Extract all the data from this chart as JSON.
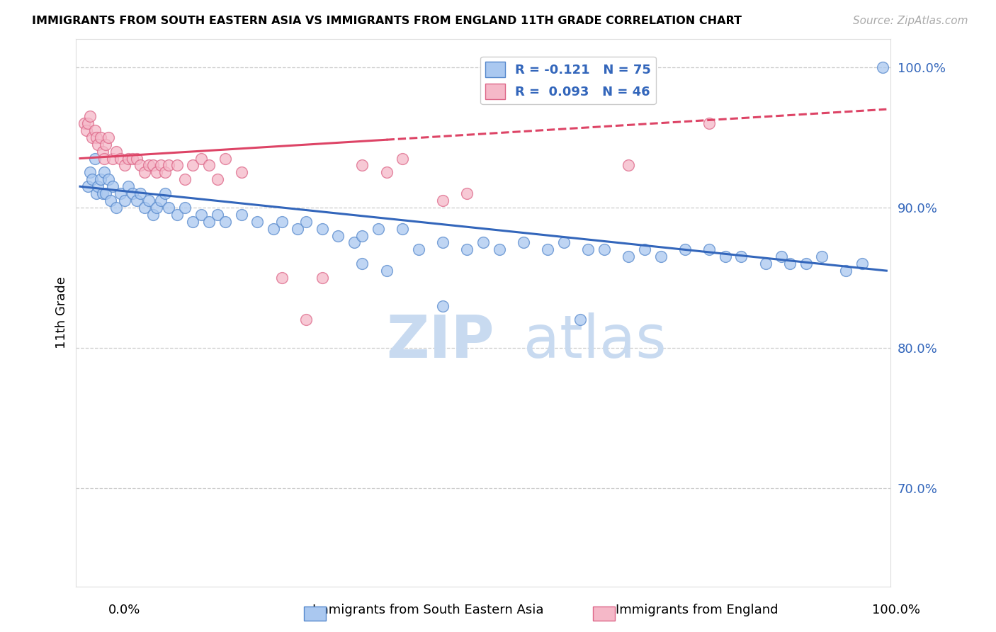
{
  "title": "IMMIGRANTS FROM SOUTH EASTERN ASIA VS IMMIGRANTS FROM ENGLAND 11TH GRADE CORRELATION CHART",
  "source": "Source: ZipAtlas.com",
  "ylabel": "11th Grade",
  "blue_R": -0.121,
  "blue_N": 75,
  "pink_R": 0.093,
  "pink_N": 46,
  "blue_color": "#aac8f0",
  "pink_color": "#f5b8c8",
  "blue_edge_color": "#5588cc",
  "pink_edge_color": "#dd6688",
  "blue_line_color": "#3366bb",
  "pink_line_color": "#dd4466",
  "blue_line_start_y": 91.5,
  "blue_line_end_y": 85.5,
  "pink_line_start_y": 93.5,
  "pink_line_end_y": 97.0,
  "pink_dash_start_x": 38.0,
  "blue_scatter_x": [
    1.0,
    1.2,
    1.5,
    1.8,
    2.0,
    2.2,
    2.5,
    2.8,
    3.0,
    3.2,
    3.5,
    3.8,
    4.0,
    4.5,
    5.0,
    5.5,
    6.0,
    6.5,
    7.0,
    7.5,
    8.0,
    8.5,
    9.0,
    9.5,
    10.0,
    10.5,
    11.0,
    12.0,
    13.0,
    14.0,
    15.0,
    16.0,
    17.0,
    18.0,
    20.0,
    22.0,
    24.0,
    25.0,
    27.0,
    28.0,
    30.0,
    32.0,
    34.0,
    35.0,
    37.0,
    40.0,
    42.0,
    45.0,
    48.0,
    50.0,
    52.0,
    55.0,
    58.0,
    60.0,
    63.0,
    65.0,
    68.0,
    70.0,
    72.0,
    75.0,
    78.0,
    80.0,
    82.0,
    85.0,
    87.0,
    88.0,
    90.0,
    92.0,
    95.0,
    97.0,
    99.5,
    35.0,
    38.0,
    45.0,
    62.0
  ],
  "blue_scatter_y": [
    91.5,
    92.5,
    92.0,
    93.5,
    91.0,
    91.5,
    92.0,
    91.0,
    92.5,
    91.0,
    92.0,
    90.5,
    91.5,
    90.0,
    91.0,
    90.5,
    91.5,
    91.0,
    90.5,
    91.0,
    90.0,
    90.5,
    89.5,
    90.0,
    90.5,
    91.0,
    90.0,
    89.5,
    90.0,
    89.0,
    89.5,
    89.0,
    89.5,
    89.0,
    89.5,
    89.0,
    88.5,
    89.0,
    88.5,
    89.0,
    88.5,
    88.0,
    87.5,
    88.0,
    88.5,
    88.5,
    87.0,
    87.5,
    87.0,
    87.5,
    87.0,
    87.5,
    87.0,
    87.5,
    87.0,
    87.0,
    86.5,
    87.0,
    86.5,
    87.0,
    87.0,
    86.5,
    86.5,
    86.0,
    86.5,
    86.0,
    86.0,
    86.5,
    85.5,
    86.0,
    100.0,
    86.0,
    85.5,
    83.0,
    82.0
  ],
  "pink_scatter_x": [
    0.5,
    0.8,
    1.0,
    1.2,
    1.5,
    1.8,
    2.0,
    2.2,
    2.5,
    2.8,
    3.0,
    3.2,
    3.5,
    4.0,
    4.5,
    5.0,
    5.5,
    6.0,
    6.5,
    7.0,
    7.5,
    8.0,
    8.5,
    9.0,
    9.5,
    10.0,
    10.5,
    11.0,
    12.0,
    13.0,
    14.0,
    15.0,
    16.0,
    17.0,
    18.0,
    20.0,
    25.0,
    28.0,
    30.0,
    35.0,
    38.0,
    40.0,
    45.0,
    48.0,
    68.0,
    78.0
  ],
  "pink_scatter_y": [
    96.0,
    95.5,
    96.0,
    96.5,
    95.0,
    95.5,
    95.0,
    94.5,
    95.0,
    94.0,
    93.5,
    94.5,
    95.0,
    93.5,
    94.0,
    93.5,
    93.0,
    93.5,
    93.5,
    93.5,
    93.0,
    92.5,
    93.0,
    93.0,
    92.5,
    93.0,
    92.5,
    93.0,
    93.0,
    92.0,
    93.0,
    93.5,
    93.0,
    92.0,
    93.5,
    92.5,
    85.0,
    82.0,
    85.0,
    93.0,
    92.5,
    93.5,
    90.5,
    91.0,
    93.0,
    96.0
  ],
  "ylim_min": 63.0,
  "ylim_max": 102.0,
  "xlim_min": -0.5,
  "xlim_max": 100.5,
  "watermark_zip": "ZIP",
  "watermark_atlas": "atlas",
  "watermark_color_zip": "#c8daf0",
  "watermark_color_atlas": "#c8daf0",
  "background_color": "#ffffff",
  "grid_color": "#cccccc",
  "grid_yticks": [
    70,
    80,
    90,
    100
  ]
}
